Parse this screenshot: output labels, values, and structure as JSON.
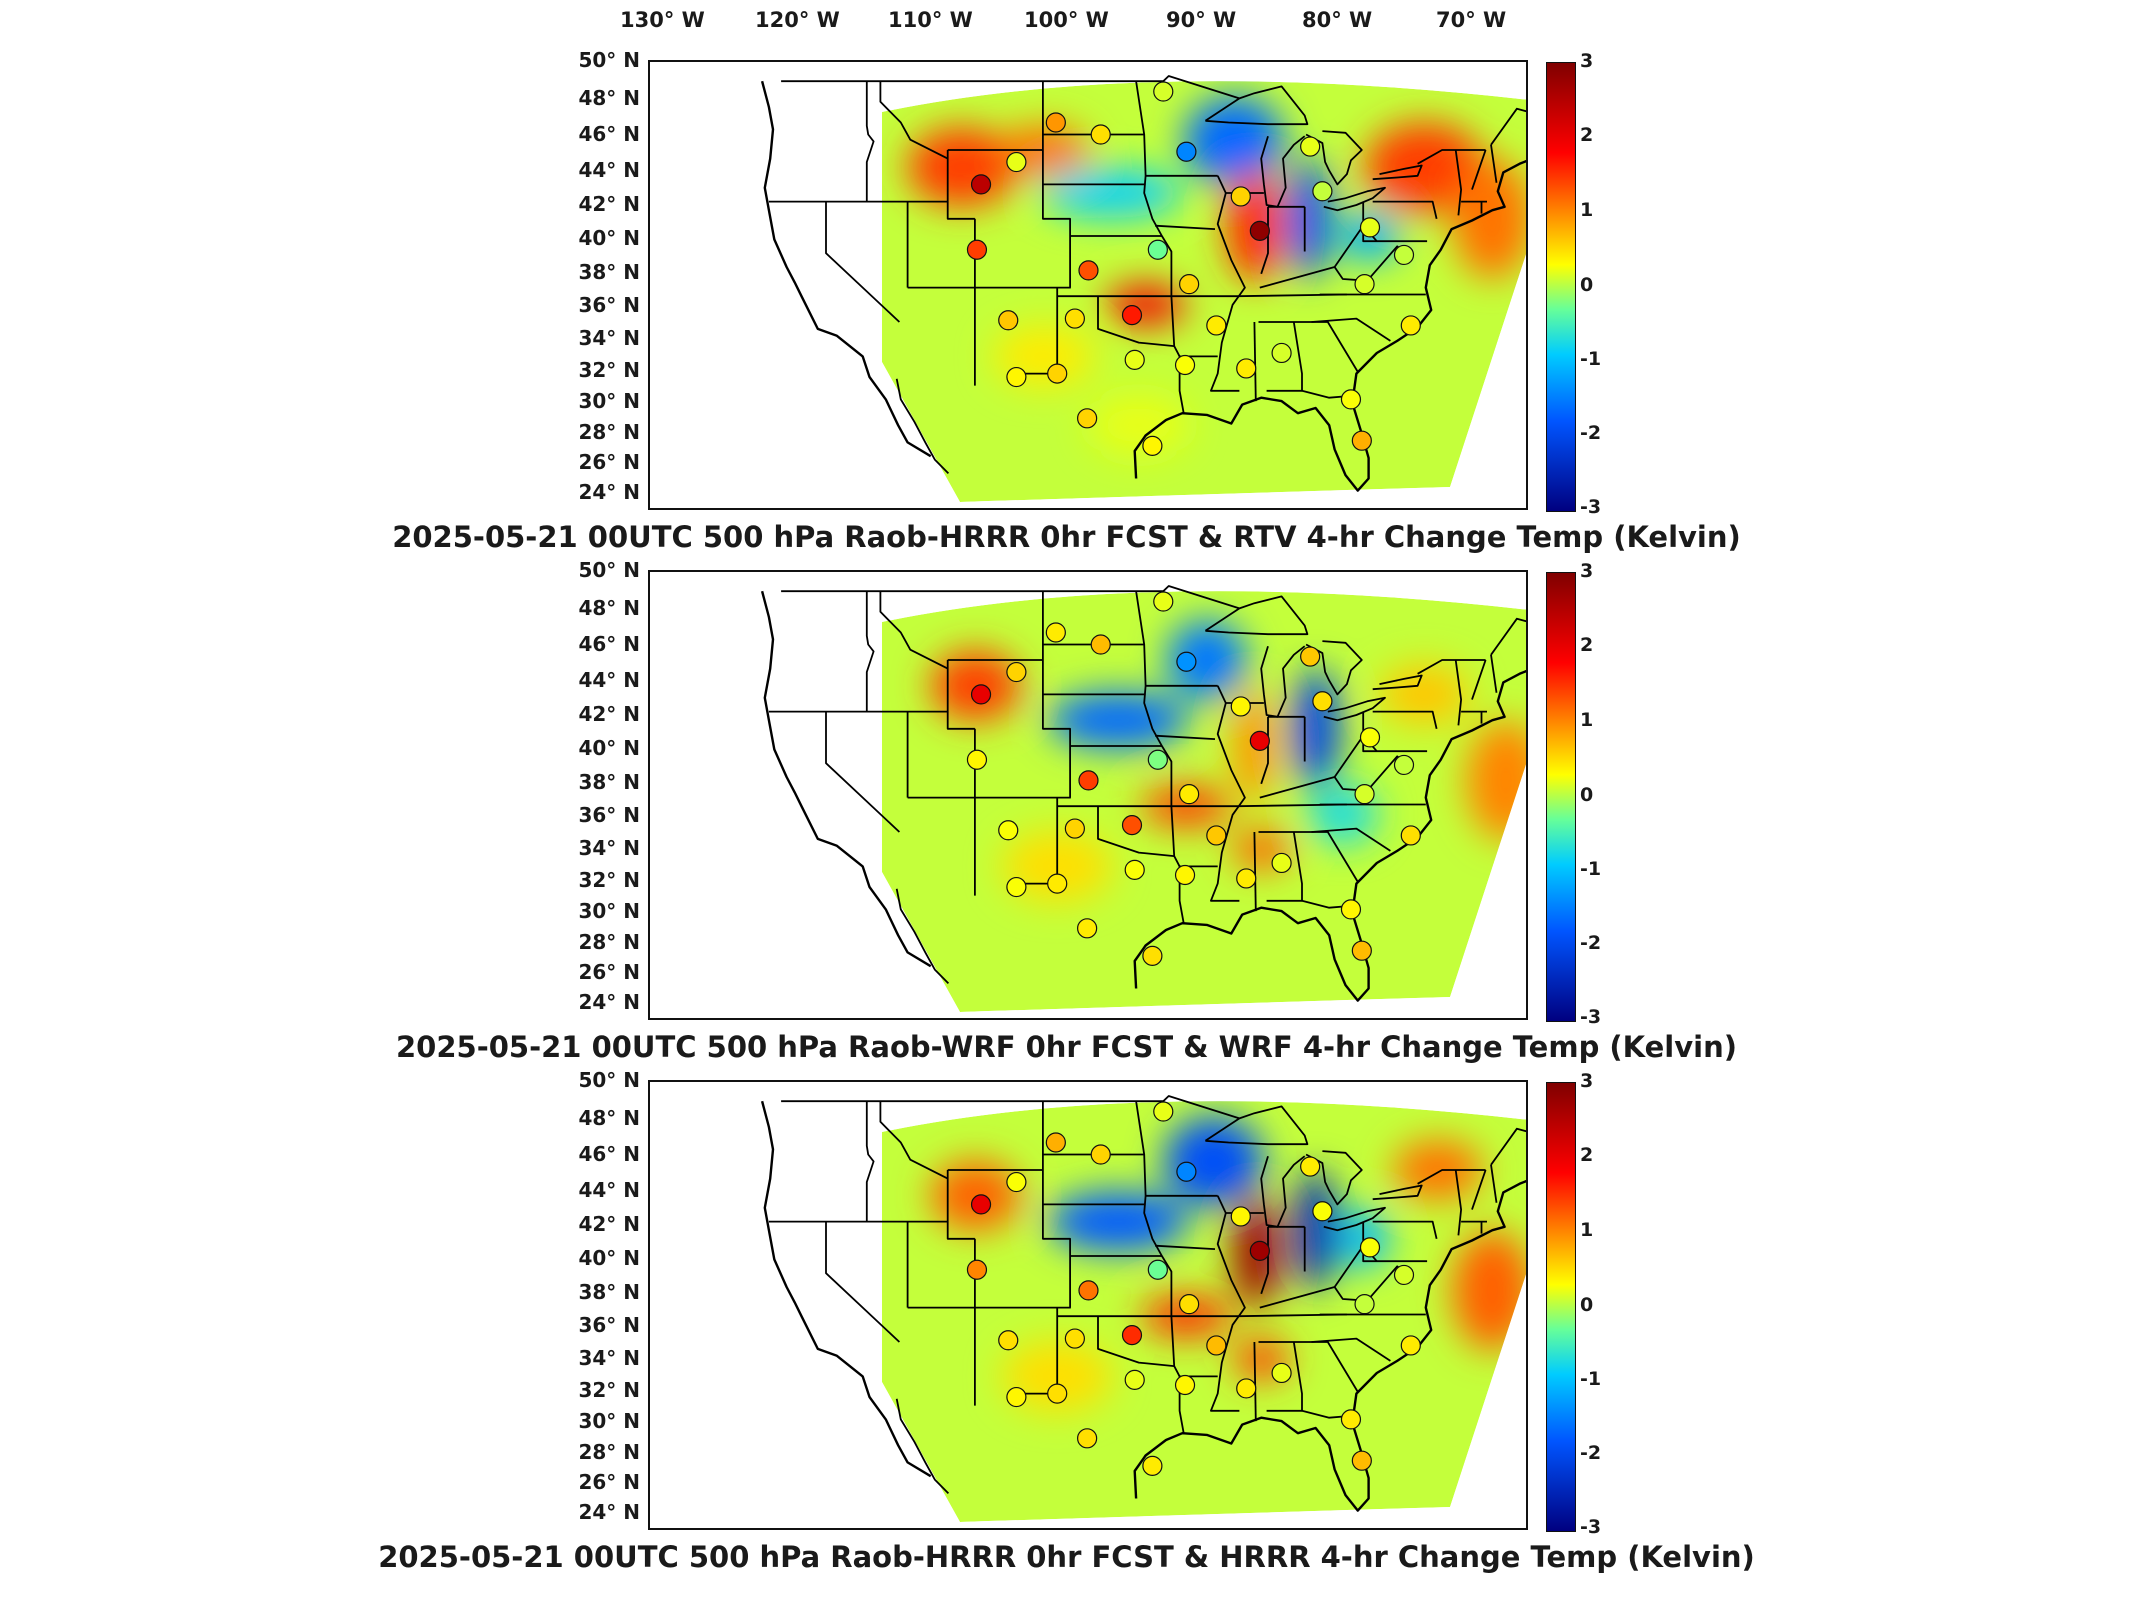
{
  "longitude_labels": [
    "130° W",
    "120° W",
    "110° W",
    "100° W",
    "90° W",
    "80° W",
    "70° W"
  ],
  "latitude_labels": [
    "50° N",
    "48° N",
    "46° N",
    "44° N",
    "42° N",
    "40° N",
    "38° N",
    "36° N",
    "34° N",
    "32° N",
    "30° N",
    "28° N",
    "26° N",
    "24° N"
  ],
  "colorbar": {
    "ticks": [
      "3",
      "2",
      "1",
      "0",
      "-1",
      "-2",
      "-3"
    ],
    "colors": [
      "#800000",
      "#ff0000",
      "#ff9900",
      "#ffff00",
      "#66ff99",
      "#00ccff",
      "#0055ff",
      "#000080"
    ]
  },
  "panels": [
    {
      "title": "2025-05-21 00UTC 500 hPa Raob-HRRR 0hr FCST & RTV 4-hr Change Temp (Kelvin)",
      "field_palette": "rtv",
      "stations": [
        {
          "lon": -103.1,
          "lat": 46.6,
          "value": 1.3
        },
        {
          "lon": -99.8,
          "lat": 45.9,
          "value": 0.7
        },
        {
          "lon": -95.2,
          "lat": 48.4,
          "value": 0.2
        },
        {
          "lon": -108.6,
          "lat": 43.0,
          "value": 2.6
        },
        {
          "lon": -106.0,
          "lat": 44.3,
          "value": 0.3
        },
        {
          "lon": -93.5,
          "lat": 44.9,
          "value": -1.8
        },
        {
          "lon": -89.5,
          "lat": 42.3,
          "value": 0.8
        },
        {
          "lon": -88.1,
          "lat": 40.3,
          "value": 2.9
        },
        {
          "lon": -84.4,
          "lat": 45.2,
          "value": 0.3
        },
        {
          "lon": -83.5,
          "lat": 42.6,
          "value": 0.1
        },
        {
          "lon": -108.9,
          "lat": 39.2,
          "value": 1.8
        },
        {
          "lon": -100.7,
          "lat": 38.0,
          "value": 1.7
        },
        {
          "lon": -95.6,
          "lat": 39.2,
          "value": -0.4
        },
        {
          "lon": -93.3,
          "lat": 37.2,
          "value": 0.8
        },
        {
          "lon": -106.6,
          "lat": 35.1,
          "value": 0.9
        },
        {
          "lon": -101.7,
          "lat": 35.2,
          "value": 0.7
        },
        {
          "lon": -97.5,
          "lat": 35.4,
          "value": 2.0
        },
        {
          "lon": -91.3,
          "lat": 34.8,
          "value": 0.6
        },
        {
          "lon": -103.0,
          "lat": 32.0,
          "value": 0.8
        },
        {
          "lon": -106.0,
          "lat": 31.8,
          "value": 0.5
        },
        {
          "lon": -97.3,
          "lat": 32.8,
          "value": 0.3
        },
        {
          "lon": -93.6,
          "lat": 32.5,
          "value": 0.4
        },
        {
          "lon": -89.1,
          "lat": 32.3,
          "value": 0.6
        },
        {
          "lon": -86.5,
          "lat": 33.2,
          "value": 0.2
        },
        {
          "lon": -96.0,
          "lat": 27.8,
          "value": 0.5
        },
        {
          "lon": -100.8,
          "lat": 29.4,
          "value": 0.8
        },
        {
          "lon": -80.6,
          "lat": 28.1,
          "value": 1.1
        },
        {
          "lon": -81.4,
          "lat": 30.5,
          "value": 0.4
        },
        {
          "lon": -80.4,
          "lat": 37.2,
          "value": 0.2
        },
        {
          "lon": -80.0,
          "lat": 40.5,
          "value": 0.3
        },
        {
          "lon": -77.5,
          "lat": 38.9,
          "value": 0.1
        },
        {
          "lon": -77.0,
          "lat": 34.8,
          "value": 0.6
        }
      ]
    },
    {
      "title": "2025-05-21 00UTC 500 hPa Raob-WRF 0hr FCST & WRF 4-hr Change Temp (Kelvin)",
      "field_palette": "wrf",
      "stations": [
        {
          "lon": -103.1,
          "lat": 46.6,
          "value": 0.6
        },
        {
          "lon": -99.8,
          "lat": 45.9,
          "value": 1.0
        },
        {
          "lon": -95.2,
          "lat": 48.4,
          "value": 0.3
        },
        {
          "lon": -108.6,
          "lat": 43.0,
          "value": 2.3
        },
        {
          "lon": -106.0,
          "lat": 44.3,
          "value": 0.8
        },
        {
          "lon": -93.5,
          "lat": 44.9,
          "value": -1.7
        },
        {
          "lon": -89.5,
          "lat": 42.3,
          "value": 0.5
        },
        {
          "lon": -88.1,
          "lat": 40.3,
          "value": 2.3
        },
        {
          "lon": -84.4,
          "lat": 45.2,
          "value": 0.9
        },
        {
          "lon": -83.5,
          "lat": 42.6,
          "value": 0.7
        },
        {
          "lon": -108.9,
          "lat": 39.2,
          "value": 0.5
        },
        {
          "lon": -100.7,
          "lat": 38.0,
          "value": 1.8
        },
        {
          "lon": -95.6,
          "lat": 39.2,
          "value": -0.3
        },
        {
          "lon": -93.3,
          "lat": 37.2,
          "value": 0.6
        },
        {
          "lon": -106.6,
          "lat": 35.1,
          "value": 0.4
        },
        {
          "lon": -101.7,
          "lat": 35.2,
          "value": 0.8
        },
        {
          "lon": -97.5,
          "lat": 35.4,
          "value": 1.7
        },
        {
          "lon": -91.3,
          "lat": 34.8,
          "value": 0.9
        },
        {
          "lon": -103.0,
          "lat": 32.0,
          "value": 0.6
        },
        {
          "lon": -106.0,
          "lat": 31.8,
          "value": 0.4
        },
        {
          "lon": -97.3,
          "lat": 32.8,
          "value": 0.4
        },
        {
          "lon": -93.6,
          "lat": 32.5,
          "value": 0.5
        },
        {
          "lon": -89.1,
          "lat": 32.3,
          "value": 0.6
        },
        {
          "lon": -86.5,
          "lat": 33.2,
          "value": 0.3
        },
        {
          "lon": -96.0,
          "lat": 27.8,
          "value": 0.7
        },
        {
          "lon": -100.8,
          "lat": 29.4,
          "value": 0.6
        },
        {
          "lon": -80.6,
          "lat": 28.1,
          "value": 1.0
        },
        {
          "lon": -81.4,
          "lat": 30.5,
          "value": 0.5
        },
        {
          "lon": -80.4,
          "lat": 37.2,
          "value": 0.2
        },
        {
          "lon": -80.0,
          "lat": 40.5,
          "value": 0.4
        },
        {
          "lon": -77.5,
          "lat": 38.9,
          "value": 0.1
        },
        {
          "lon": -77.0,
          "lat": 34.8,
          "value": 0.7
        }
      ]
    },
    {
      "title": "2025-05-21 00UTC 500 hPa Raob-HRRR 0hr FCST & HRRR 4-hr Change Temp (Kelvin)",
      "field_palette": "hrrr",
      "stations": [
        {
          "lon": -103.1,
          "lat": 46.6,
          "value": 1.1
        },
        {
          "lon": -99.8,
          "lat": 45.9,
          "value": 0.8
        },
        {
          "lon": -95.2,
          "lat": 48.4,
          "value": 0.3
        },
        {
          "lon": -108.6,
          "lat": 43.0,
          "value": 2.3
        },
        {
          "lon": -106.0,
          "lat": 44.3,
          "value": 0.4
        },
        {
          "lon": -93.5,
          "lat": 44.9,
          "value": -1.8
        },
        {
          "lon": -89.5,
          "lat": 42.3,
          "value": 0.5
        },
        {
          "lon": -88.1,
          "lat": 40.3,
          "value": 2.8
        },
        {
          "lon": -84.4,
          "lat": 45.2,
          "value": 0.6
        },
        {
          "lon": -83.5,
          "lat": 42.6,
          "value": 0.4
        },
        {
          "lon": -108.9,
          "lat": 39.2,
          "value": 1.4
        },
        {
          "lon": -100.7,
          "lat": 38.0,
          "value": 1.5
        },
        {
          "lon": -95.6,
          "lat": 39.2,
          "value": -0.4
        },
        {
          "lon": -93.3,
          "lat": 37.2,
          "value": 0.7
        },
        {
          "lon": -106.6,
          "lat": 35.1,
          "value": 0.7
        },
        {
          "lon": -101.7,
          "lat": 35.2,
          "value": 0.7
        },
        {
          "lon": -97.5,
          "lat": 35.4,
          "value": 1.9
        },
        {
          "lon": -91.3,
          "lat": 34.8,
          "value": 1.0
        },
        {
          "lon": -103.0,
          "lat": 32.0,
          "value": 0.7
        },
        {
          "lon": -106.0,
          "lat": 31.8,
          "value": 0.5
        },
        {
          "lon": -97.3,
          "lat": 32.8,
          "value": 0.3
        },
        {
          "lon": -93.6,
          "lat": 32.5,
          "value": 0.5
        },
        {
          "lon": -89.1,
          "lat": 32.3,
          "value": 0.6
        },
        {
          "lon": -86.5,
          "lat": 33.2,
          "value": 0.3
        },
        {
          "lon": -96.0,
          "lat": 27.8,
          "value": 0.6
        },
        {
          "lon": -100.8,
          "lat": 29.4,
          "value": 0.7
        },
        {
          "lon": -80.6,
          "lat": 28.1,
          "value": 1.0
        },
        {
          "lon": -81.4,
          "lat": 30.5,
          "value": 0.6
        },
        {
          "lon": -80.4,
          "lat": 37.2,
          "value": 0.1
        },
        {
          "lon": -80.0,
          "lat": 40.5,
          "value": 0.4
        },
        {
          "lon": -77.5,
          "lat": 38.9,
          "value": 0.2
        },
        {
          "lon": -77.0,
          "lat": 34.8,
          "value": 0.6
        }
      ]
    }
  ]
}
